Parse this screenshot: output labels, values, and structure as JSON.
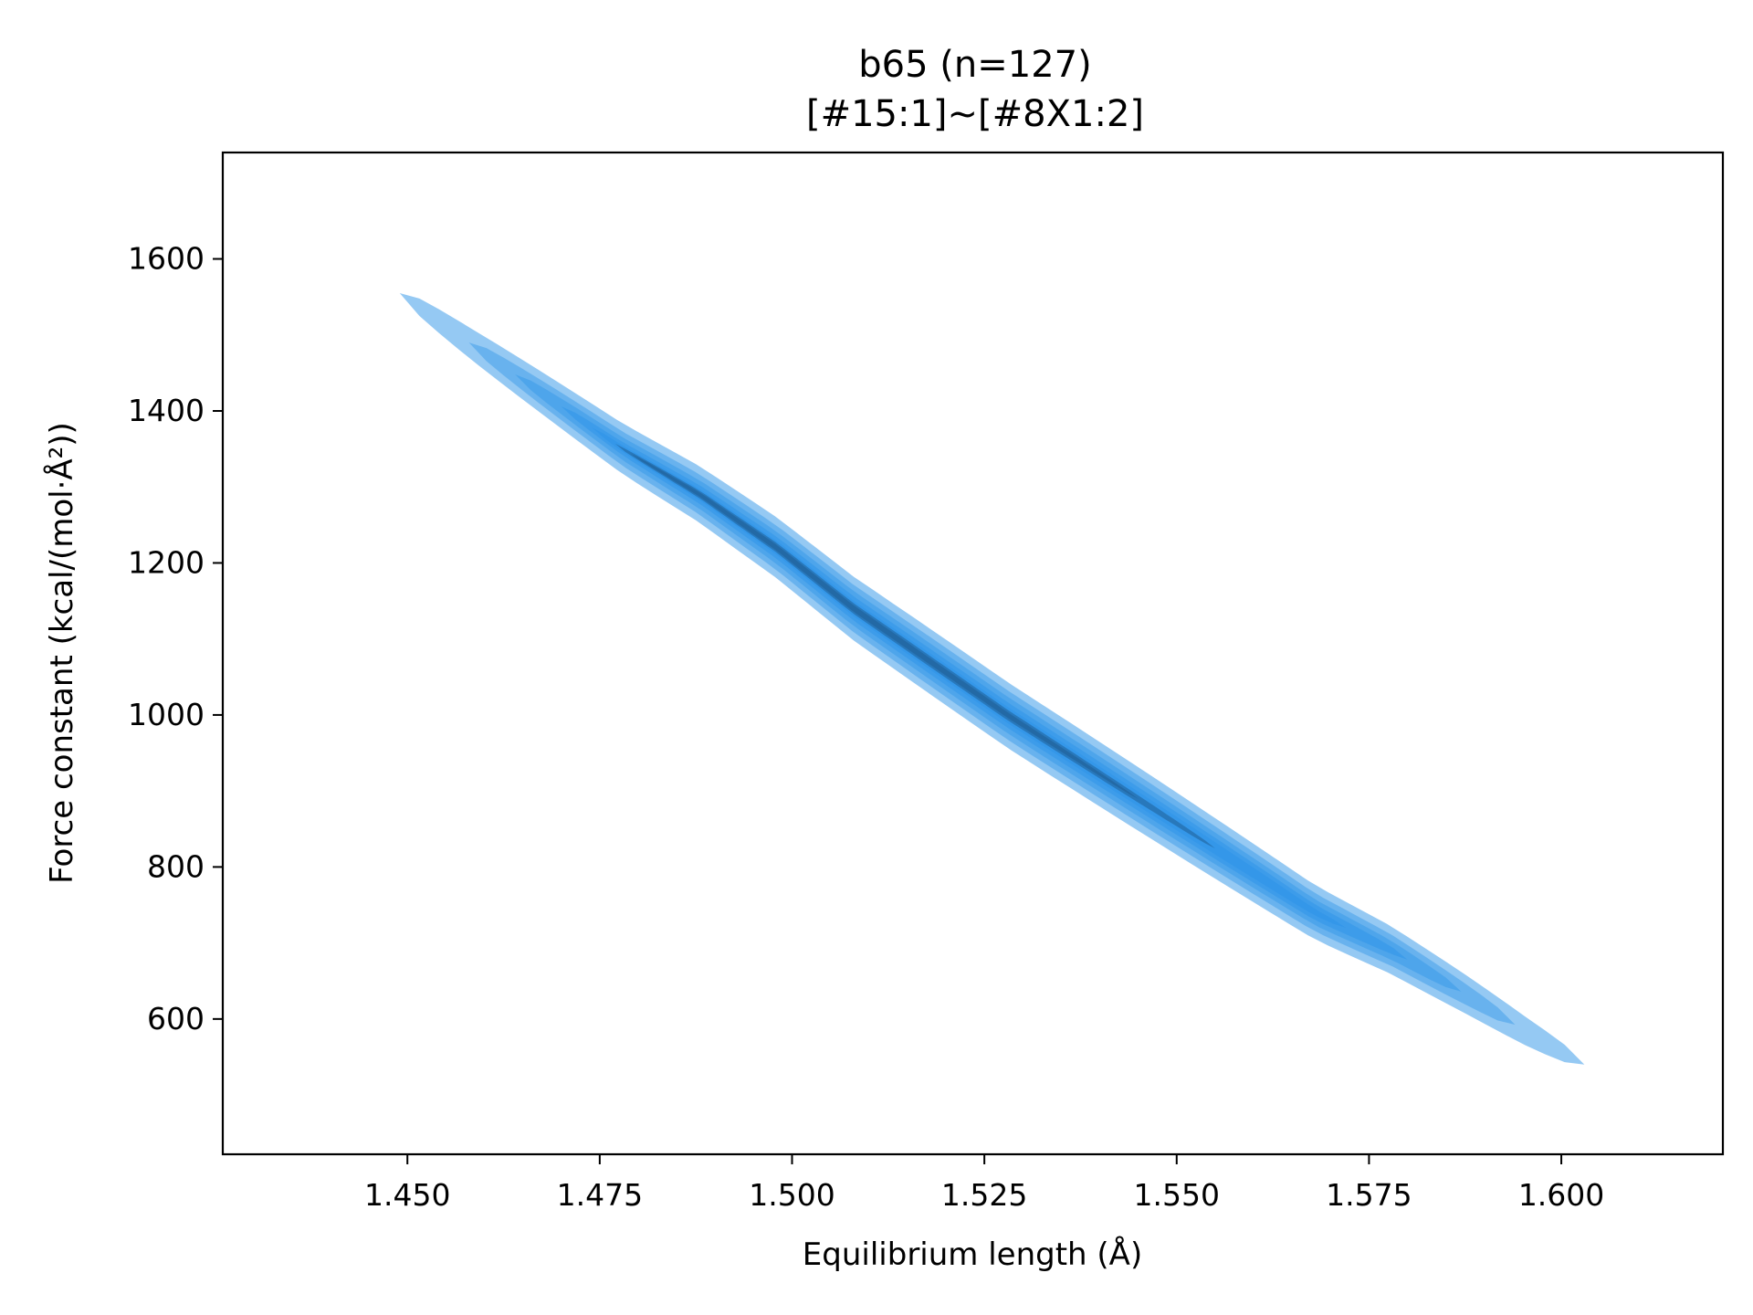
{
  "chart_data": {
    "type": "kde-contour",
    "title_line1": "b65 (n=127)",
    "title_line2": "[#15:1]~[#8X1:2]",
    "xlabel": "Equilibrium length (Å)",
    "ylabel": "Force constant (kcal/(mol·Å²))",
    "xlim": [
      1.426,
      1.621
    ],
    "ylim": [
      422,
      1740
    ],
    "x_ticks": [
      1.45,
      1.475,
      1.5,
      1.525,
      1.55,
      1.575,
      1.6
    ],
    "x_tick_labels": [
      "1.450",
      "1.475",
      "1.500",
      "1.525",
      "1.550",
      "1.575",
      "1.600"
    ],
    "y_ticks": [
      600,
      800,
      1000,
      1200,
      1400,
      1600
    ],
    "y_tick_labels": [
      "600",
      "800",
      "1000",
      "1200",
      "1400",
      "1600"
    ],
    "grid": false,
    "color": "#2b93e8",
    "ridge": [
      [
        1.449,
        1555
      ],
      [
        1.458,
        1490
      ],
      [
        1.468,
        1420
      ],
      [
        1.478,
        1350
      ],
      [
        1.488,
        1290
      ],
      [
        1.498,
        1220
      ],
      [
        1.508,
        1140
      ],
      [
        1.518,
        1070
      ],
      [
        1.528,
        1000
      ],
      [
        1.538,
        935
      ],
      [
        1.548,
        870
      ],
      [
        1.558,
        805
      ],
      [
        1.568,
        740
      ],
      [
        1.578,
        690
      ],
      [
        1.588,
        630
      ],
      [
        1.596,
        580
      ],
      [
        1.603,
        540
      ]
    ],
    "levels": [
      {
        "halfwidth": 36,
        "x_range": [
          1.449,
          1.603
        ],
        "opacity": 0.5
      },
      {
        "halfwidth": 27,
        "x_range": [
          1.458,
          1.594
        ],
        "opacity": 0.42
      },
      {
        "halfwidth": 20,
        "x_range": [
          1.464,
          1.587
        ],
        "opacity": 0.42
      },
      {
        "halfwidth": 14,
        "x_range": [
          1.47,
          1.58
        ],
        "opacity": 0.45
      },
      {
        "halfwidth": 9,
        "x_range": [
          1.474,
          1.572
        ],
        "opacity": 0.48
      },
      {
        "halfwidth": 6,
        "x_range": [
          1.477,
          1.555
        ],
        "opacity": 0.55
      },
      {
        "halfwidth": 3.5,
        "x_range": [
          1.479,
          1.545
        ],
        "opacity": 0.6
      }
    ]
  }
}
